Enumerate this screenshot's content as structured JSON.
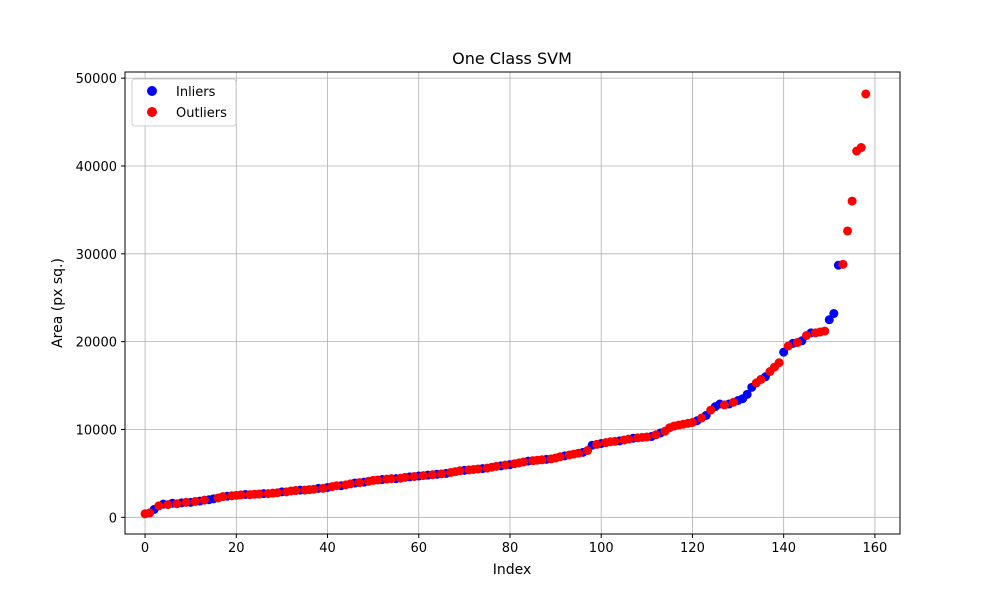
{
  "chart_data": {
    "type": "scatter",
    "title": "One Class SVM",
    "xlabel": "Index",
    "ylabel": "Area (px sq.)",
    "xlim": [
      -4.4,
      165.5
    ],
    "ylim": [
      -1900,
      50700
    ],
    "xticks": [
      0,
      20,
      40,
      60,
      80,
      100,
      120,
      140,
      160
    ],
    "yticks": [
      0,
      10000,
      20000,
      30000,
      40000,
      50000
    ],
    "grid": true,
    "legend_position": "upper-left",
    "series": [
      {
        "name": "Inliers",
        "color": "#0000ff",
        "points": [
          [
            2,
            900
          ],
          [
            4,
            1500
          ],
          [
            6,
            1600
          ],
          [
            8,
            1650
          ],
          [
            10,
            1700
          ],
          [
            12,
            1850
          ],
          [
            14,
            2000
          ],
          [
            15,
            2100
          ],
          [
            18,
            2400
          ],
          [
            22,
            2600
          ],
          [
            26,
            2700
          ],
          [
            30,
            2900
          ],
          [
            34,
            3100
          ],
          [
            38,
            3300
          ],
          [
            40,
            3400
          ],
          [
            43,
            3600
          ],
          [
            46,
            3900
          ],
          [
            48,
            4000
          ],
          [
            52,
            4300
          ],
          [
            55,
            4400
          ],
          [
            58,
            4600
          ],
          [
            60,
            4700
          ],
          [
            62,
            4800
          ],
          [
            64,
            4900
          ],
          [
            66,
            5000
          ],
          [
            70,
            5350
          ],
          [
            74,
            5550
          ],
          [
            78,
            5850
          ],
          [
            80,
            6000
          ],
          [
            84,
            6400
          ],
          [
            88,
            6600
          ],
          [
            92,
            7000
          ],
          [
            96,
            7400
          ],
          [
            98,
            8200
          ],
          [
            100,
            8400
          ],
          [
            104,
            8700
          ],
          [
            107,
            9000
          ],
          [
            111,
            9200
          ],
          [
            113,
            9600
          ],
          [
            121,
            11000
          ],
          [
            123,
            11600
          ],
          [
            125,
            12600
          ],
          [
            126,
            12900
          ],
          [
            128,
            12900
          ],
          [
            130,
            13300
          ],
          [
            131,
            13500
          ],
          [
            132,
            14000
          ],
          [
            133,
            14800
          ],
          [
            136,
            16000
          ],
          [
            140,
            18800
          ],
          [
            142,
            19800
          ],
          [
            144,
            20100
          ],
          [
            146,
            21000
          ],
          [
            150,
            22500
          ],
          [
            151,
            23200
          ],
          [
            152,
            28700
          ]
        ]
      },
      {
        "name": "Outliers",
        "color": "#ff0000",
        "points": [
          [
            0,
            400
          ],
          [
            1,
            500
          ],
          [
            3,
            1300
          ],
          [
            5,
            1450
          ],
          [
            7,
            1550
          ],
          [
            9,
            1700
          ],
          [
            11,
            1800
          ],
          [
            13,
            1950
          ],
          [
            16,
            2200
          ],
          [
            17,
            2350
          ],
          [
            19,
            2450
          ],
          [
            20,
            2500
          ],
          [
            21,
            2550
          ],
          [
            23,
            2580
          ],
          [
            24,
            2620
          ],
          [
            25,
            2650
          ],
          [
            27,
            2700
          ],
          [
            28,
            2750
          ],
          [
            29,
            2800
          ],
          [
            31,
            2900
          ],
          [
            32,
            3000
          ],
          [
            33,
            3050
          ],
          [
            35,
            3100
          ],
          [
            36,
            3150
          ],
          [
            37,
            3200
          ],
          [
            39,
            3300
          ],
          [
            41,
            3500
          ],
          [
            42,
            3600
          ],
          [
            44,
            3700
          ],
          [
            45,
            3800
          ],
          [
            47,
            3950
          ],
          [
            49,
            4100
          ],
          [
            50,
            4200
          ],
          [
            51,
            4250
          ],
          [
            53,
            4350
          ],
          [
            54,
            4400
          ],
          [
            56,
            4450
          ],
          [
            57,
            4550
          ],
          [
            59,
            4650
          ],
          [
            61,
            4750
          ],
          [
            63,
            4850
          ],
          [
            65,
            4950
          ],
          [
            67,
            5100
          ],
          [
            68,
            5200
          ],
          [
            69,
            5300
          ],
          [
            71,
            5400
          ],
          [
            72,
            5450
          ],
          [
            73,
            5500
          ],
          [
            75,
            5600
          ],
          [
            76,
            5700
          ],
          [
            77,
            5800
          ],
          [
            79,
            5950
          ],
          [
            81,
            6100
          ],
          [
            82,
            6200
          ],
          [
            83,
            6300
          ],
          [
            85,
            6450
          ],
          [
            86,
            6500
          ],
          [
            87,
            6550
          ],
          [
            89,
            6650
          ],
          [
            90,
            6750
          ],
          [
            91,
            6900
          ],
          [
            93,
            7100
          ],
          [
            94,
            7200
          ],
          [
            95,
            7300
          ],
          [
            97,
            7600
          ],
          [
            99,
            8300
          ],
          [
            101,
            8500
          ],
          [
            102,
            8600
          ],
          [
            103,
            8650
          ],
          [
            105,
            8800
          ],
          [
            106,
            8900
          ],
          [
            108,
            9050
          ],
          [
            109,
            9100
          ],
          [
            110,
            9150
          ],
          [
            112,
            9400
          ],
          [
            114,
            9800
          ],
          [
            115,
            10200
          ],
          [
            116,
            10400
          ],
          [
            117,
            10500
          ],
          [
            118,
            10600
          ],
          [
            119,
            10700
          ],
          [
            120,
            10800
          ],
          [
            122,
            11300
          ],
          [
            124,
            12200
          ],
          [
            127,
            12800
          ],
          [
            129,
            13100
          ],
          [
            134,
            15300
          ],
          [
            135,
            15700
          ],
          [
            137,
            16600
          ],
          [
            138,
            17100
          ],
          [
            139,
            17600
          ],
          [
            141,
            19500
          ],
          [
            143,
            19900
          ],
          [
            145,
            20700
          ],
          [
            147,
            21000
          ],
          [
            148,
            21100
          ],
          [
            149,
            21200
          ],
          [
            153,
            28800
          ],
          [
            154,
            32600
          ],
          [
            155,
            36000
          ],
          [
            156,
            41700
          ],
          [
            157,
            42100
          ],
          [
            158,
            48200
          ]
        ]
      }
    ]
  }
}
